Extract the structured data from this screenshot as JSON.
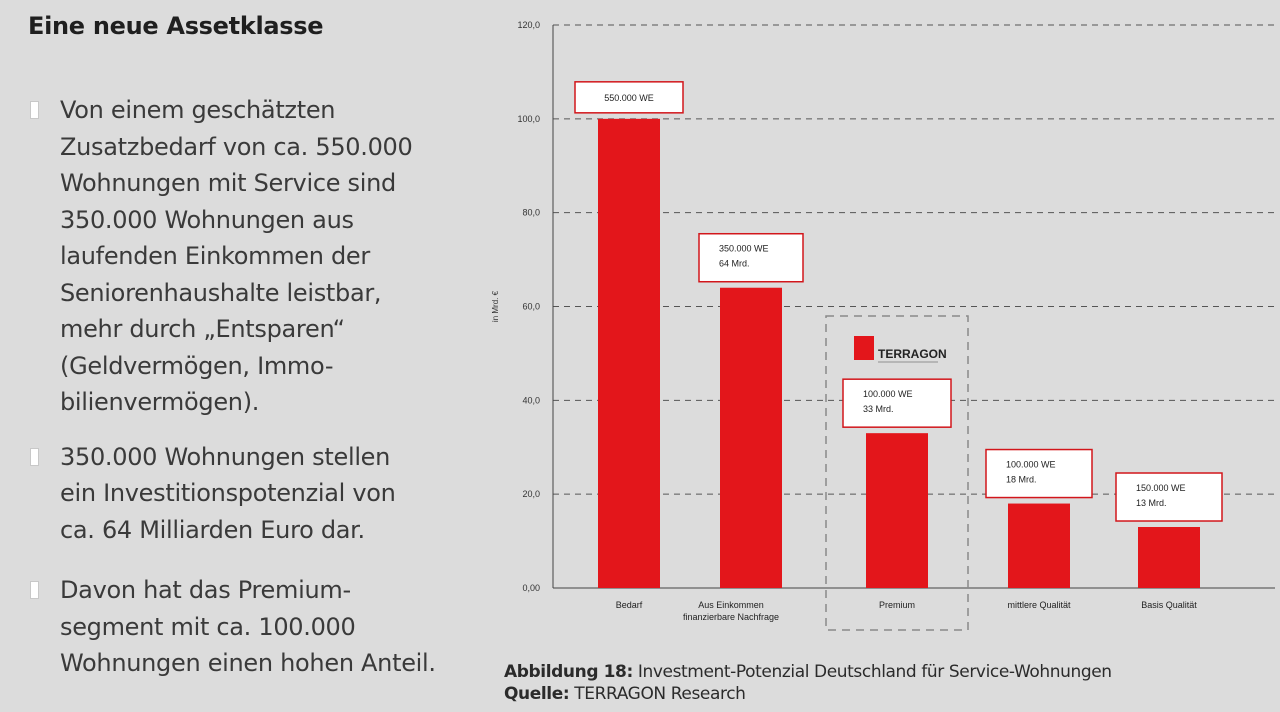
{
  "page": {
    "title": "Eine neue Assetklasse",
    "bullets": [
      "Von einem geschätzten\nZusatzbedarf von ca. 550.000\nWohnungen mit Service sind\n350.000 Wohnungen aus\nlaufenden Einkommen der\nSeniorenhaushalte leistbar,\nmehr durch „Entsparen“\n(Geldvermögen, Immo-\nbilienvermögen).",
      "350.000 Wohnungen stellen\nein Investitionspotenzial von\nca. 64 Milliarden Euro dar.",
      "Davon hat das Premium-\nsegment mit ca. 100.000\nWohnungen einen hohen Anteil."
    ],
    "caption": {
      "fig_label": "Abbildung 18:",
      "fig_text": " Investment-Potenzial Deutschland für Service-Wohnungen",
      "source_label": "Quelle:",
      "source_text": " TERRAGON Research"
    }
  },
  "chart_data": {
    "type": "bar",
    "categories": [
      "Bedarf",
      "Aus Einkommen\nfinanzierbare Nachfrage",
      "Premium",
      "mittlere Qualität",
      "Basis Qualität"
    ],
    "values": [
      100,
      64,
      33,
      18,
      13
    ],
    "ylabel": "in Mrd. €",
    "ylim": [
      0,
      120
    ],
    "yticks": [
      "0,00",
      "20,0",
      "40,0",
      "60,0",
      "80,0",
      "100,0",
      "120,0"
    ],
    "grid": true,
    "bar_color": "#e3161b",
    "data_labels": [
      [
        "550.000 WE"
      ],
      [
        "350.000 WE",
        "64 Mrd."
      ],
      [
        "100.000 WE",
        "33 Mrd."
      ],
      [
        "100.000 WE",
        "18 Mrd."
      ],
      [
        "150.000 WE",
        "13 Mrd."
      ]
    ],
    "highlight": {
      "category": "Premium",
      "logo_text": "TERRAGON"
    }
  }
}
